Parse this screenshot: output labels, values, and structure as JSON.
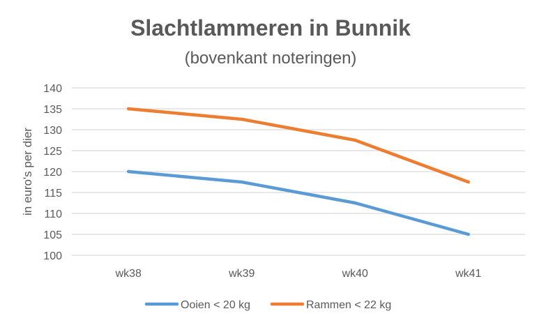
{
  "chart_data": {
    "type": "line",
    "title": "Slachtlammeren in Bunnik",
    "subtitle": "(bovenkant noteringen)",
    "xlabel": "",
    "ylabel": "in euro's per dier",
    "categories": [
      "wk38",
      "wk39",
      "wk40",
      "wk41"
    ],
    "ylim": [
      100,
      140
    ],
    "yticks": [
      100,
      105,
      110,
      115,
      120,
      125,
      130,
      135,
      140
    ],
    "grid": true,
    "legend_position": "bottom",
    "series": [
      {
        "name": "Ooien < 20 kg",
        "values": [
          120,
          117.5,
          112.5,
          105
        ],
        "color": "#5B9BD5"
      },
      {
        "name": "Rammen < 22 kg",
        "values": [
          135,
          132.5,
          127.5,
          117.5
        ],
        "color": "#ED7D31"
      }
    ]
  }
}
